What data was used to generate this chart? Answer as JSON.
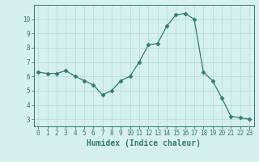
{
  "x": [
    0,
    1,
    2,
    3,
    4,
    5,
    6,
    7,
    8,
    9,
    10,
    11,
    12,
    13,
    14,
    15,
    16,
    17,
    18,
    19,
    20,
    21,
    22,
    23
  ],
  "y": [
    6.3,
    6.2,
    6.2,
    6.4,
    6.0,
    5.7,
    5.4,
    4.7,
    5.0,
    5.7,
    6.0,
    7.0,
    8.2,
    8.3,
    9.5,
    10.3,
    10.4,
    10.0,
    6.3,
    5.7,
    4.5,
    3.2,
    3.1,
    3.0
  ],
  "xlabel": "Humidex (Indice chaleur)",
  "xlim": [
    -0.5,
    23.5
  ],
  "ylim": [
    2.5,
    11.0
  ],
  "yticks": [
    3,
    4,
    5,
    6,
    7,
    8,
    9,
    10
  ],
  "xticks": [
    0,
    1,
    2,
    3,
    4,
    5,
    6,
    7,
    8,
    9,
    10,
    11,
    12,
    13,
    14,
    15,
    16,
    17,
    18,
    19,
    20,
    21,
    22,
    23
  ],
  "line_color": "#2e7d6e",
  "marker": "D",
  "marker_size": 2.5,
  "bg_color": "#d6f0ee",
  "grid_color": "#b8ddd9",
  "axis_color": "#2e7d6e",
  "label_color": "#2e7d6e",
  "font_size_tick": 5.5,
  "font_size_label": 7.0,
  "linewidth": 0.9
}
